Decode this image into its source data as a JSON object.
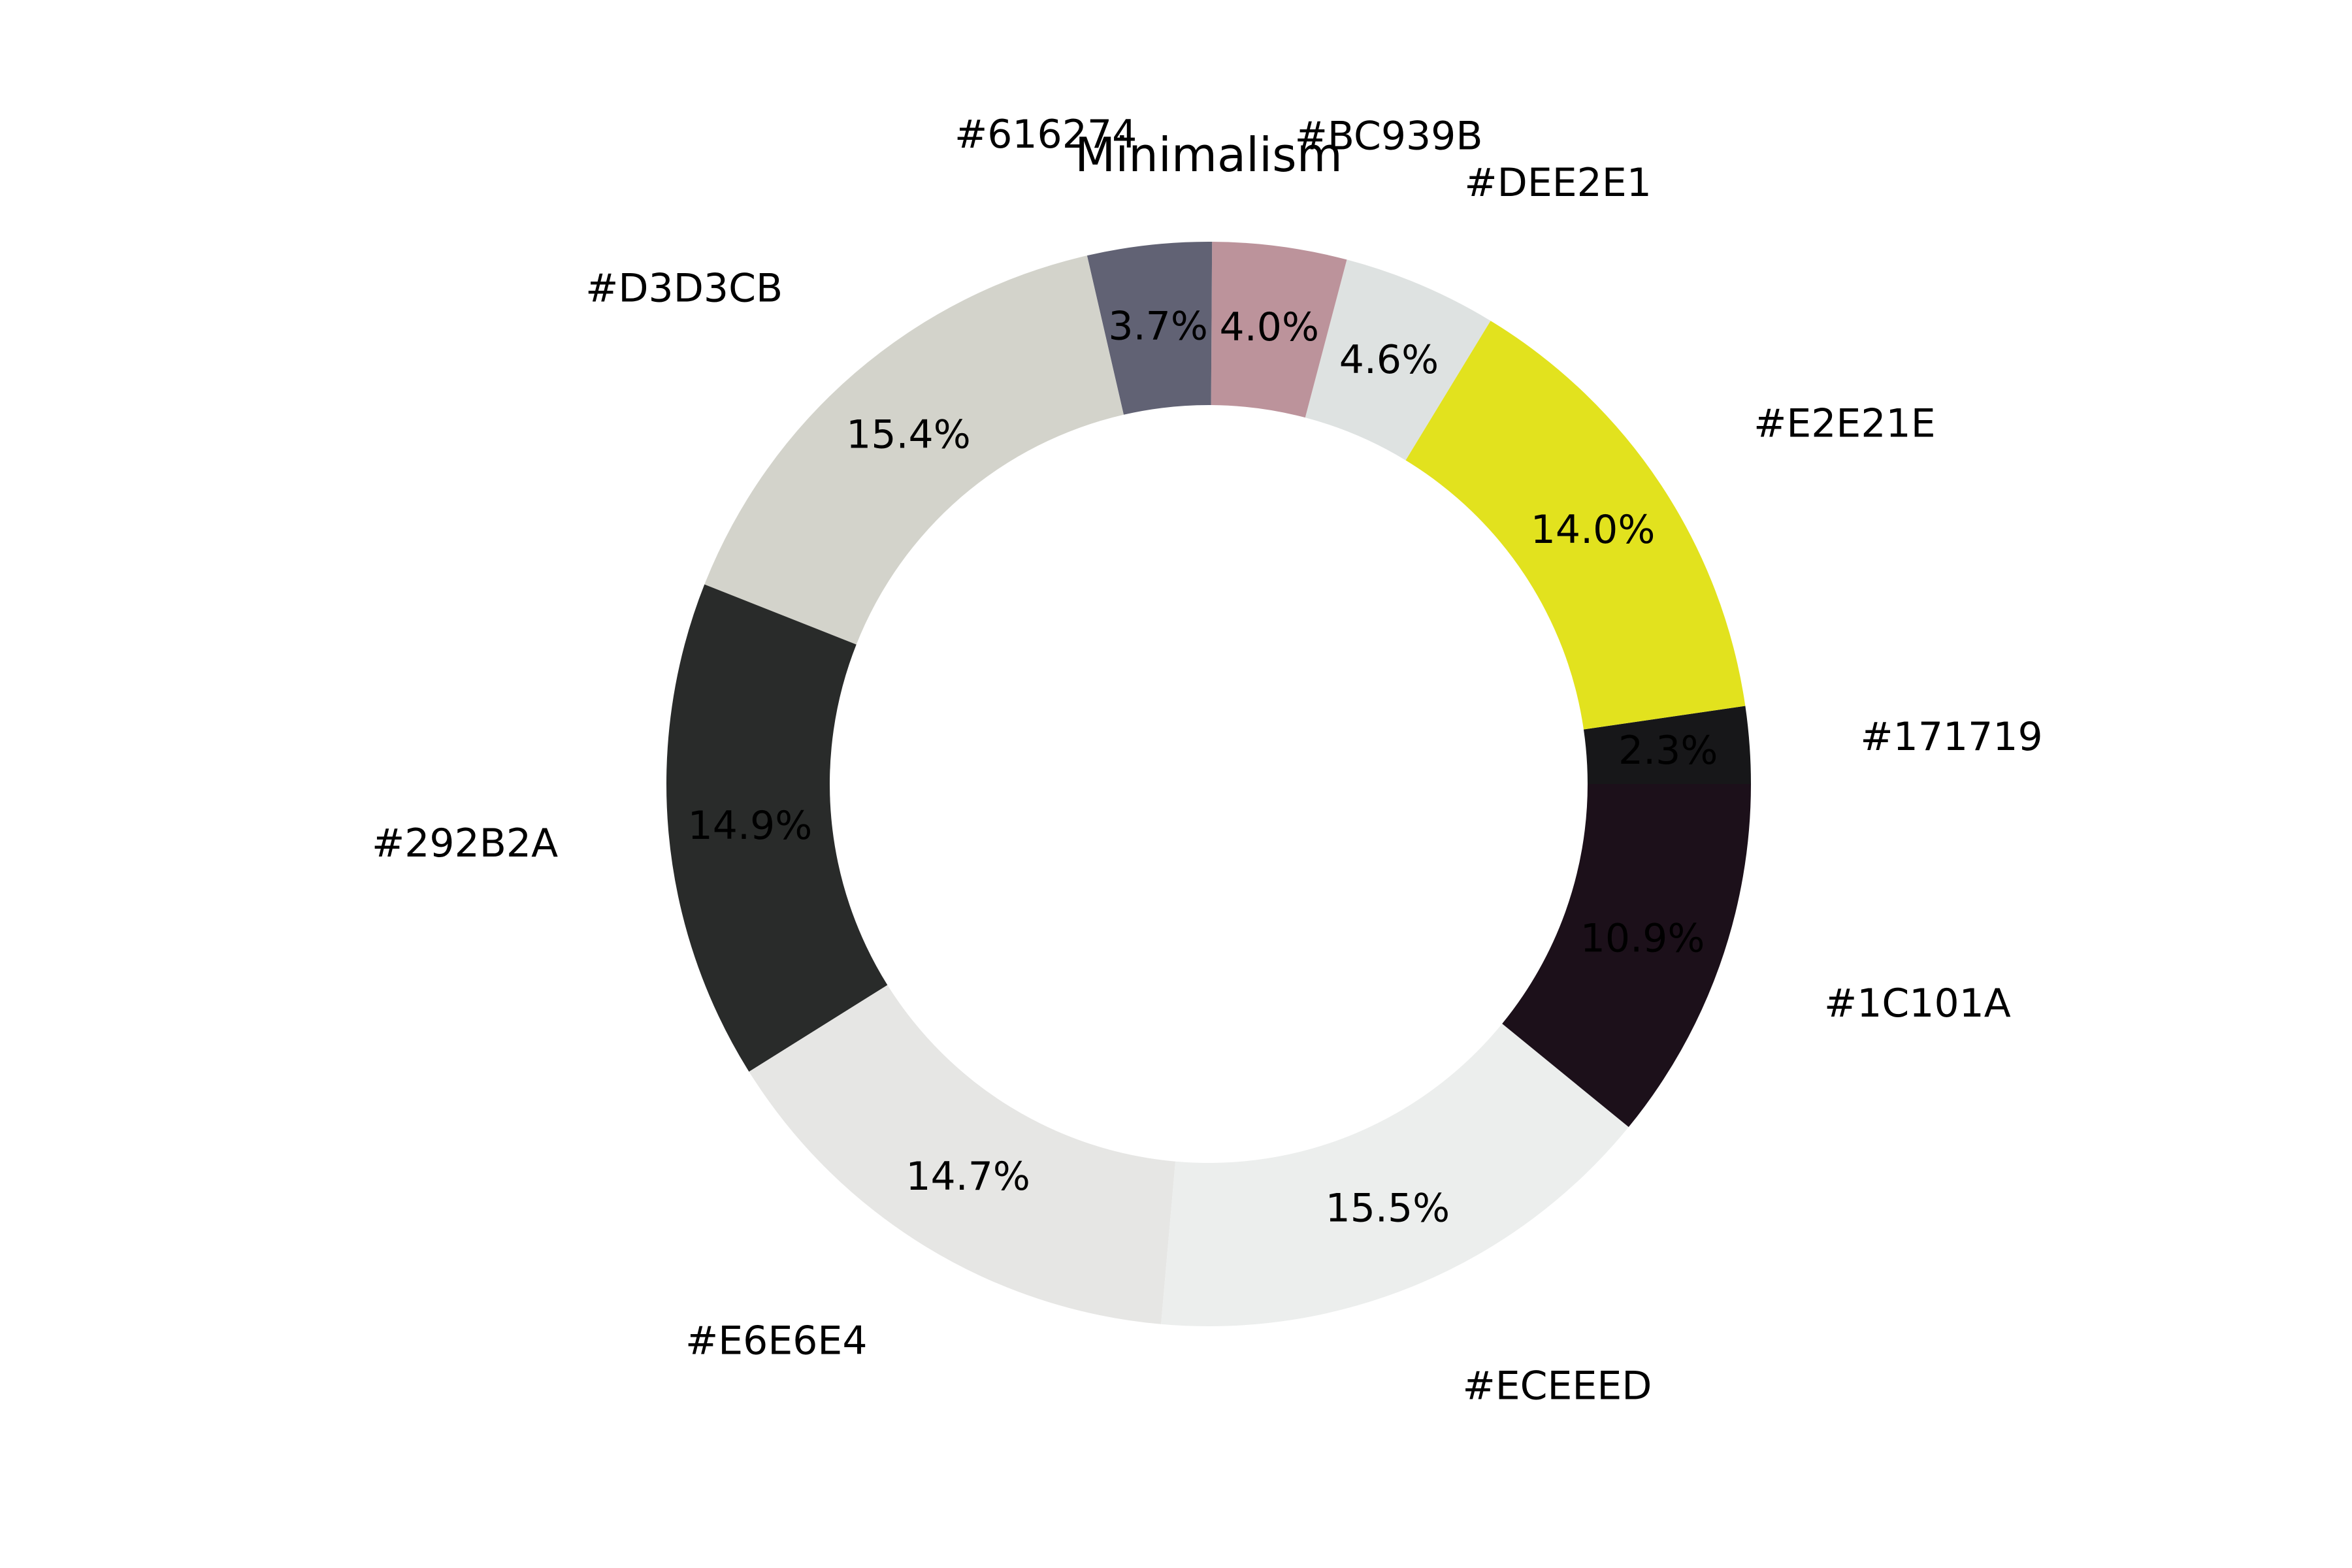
{
  "chart_data": {
    "type": "pie",
    "title": "Minimalism",
    "donut": true,
    "start_angle_deg": 0,
    "direction": "counterclockwise",
    "slices": [
      {
        "label": "#171719",
        "value": 2.3,
        "value_label": "2.3%",
        "color": "#171719"
      },
      {
        "label": "#E2E21E",
        "value": 14.0,
        "value_label": "14.0%",
        "color": "#E2E21E"
      },
      {
        "label": "#DEE2E1",
        "value": 4.6,
        "value_label": "4.6%",
        "color": "#DEE2E1"
      },
      {
        "label": "#BC939B",
        "value": 4.0,
        "value_label": "4.0%",
        "color": "#BC939B"
      },
      {
        "label": "#616274",
        "value": 3.7,
        "value_label": "3.7%",
        "color": "#616274"
      },
      {
        "label": "#D3D3CB",
        "value": 15.4,
        "value_label": "15.4%",
        "color": "#D3D3CB"
      },
      {
        "label": "#292B2A",
        "value": 14.9,
        "value_label": "14.9%",
        "color": "#292B2A"
      },
      {
        "label": "#E6E6E4",
        "value": 14.7,
        "value_label": "14.7%",
        "color": "#E6E6E4"
      },
      {
        "label": "#ECEEED",
        "value": 15.5,
        "value_label": "15.5%",
        "color": "#ECEEED"
      },
      {
        "label": "#1C101A",
        "value": 10.9,
        "value_label": "10.9%",
        "color": "#1C101A"
      }
    ]
  }
}
